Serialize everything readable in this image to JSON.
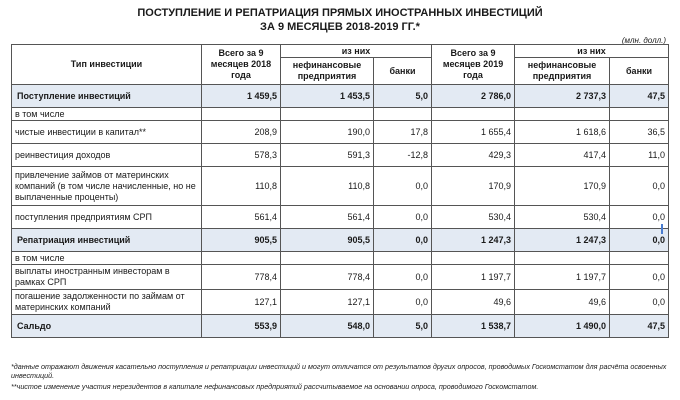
{
  "title": {
    "line1": "ПОСТУПЛЕНИЕ И РЕПАТРИАЦИЯ ПРЯМЫХ ИНОСТРАННЫХ ИНВЕСТИЦИЙ",
    "line2": "ЗА 9 МЕСЯЦЕВ 2018-2019 ГГ.*"
  },
  "unit": "(млн. долл.)",
  "header": {
    "type": "Тип инвестиции",
    "total2018": "Всего за 9 месяцев 2018 года",
    "of_which_2018": "из них",
    "nonfin_2018": "нефинансовые предприятия",
    "banks_2018": "банки",
    "total2019": "Всего за 9 месяцев 2019 года",
    "of_which_2019": "из них",
    "nonfin_2019": "нефинансовые предприятия",
    "banks_2019": "банки"
  },
  "rows": [
    {
      "label": "Поступление инвестиций",
      "t18": "1 459,5",
      "n18": "1 453,5",
      "b18": "5,0",
      "t19": "2 786,0",
      "n19": "2 737,3",
      "b19": "47,5"
    },
    {
      "label": "в том числе",
      "t18": "",
      "n18": "",
      "b18": "",
      "t19": "",
      "n19": "",
      "b19": ""
    },
    {
      "label": "чистые инвестиции в капитал**",
      "t18": "208,9",
      "n18": "190,0",
      "b18": "17,8",
      "t19": "1 655,4",
      "n19": "1 618,6",
      "b19": "36,5"
    },
    {
      "label": "реинвестиция доходов",
      "t18": "578,3",
      "n18": "591,3",
      "b18": "-12,8",
      "t19": "429,3",
      "n19": "417,4",
      "b19": "11,0"
    },
    {
      "label": "привлечение займов от материнских компаний (в том числе начисленные, но не выплаченные проценты)",
      "t18": "110,8",
      "n18": "110,8",
      "b18": "0,0",
      "t19": "170,9",
      "n19": "170,9",
      "b19": "0,0"
    },
    {
      "label": "поступления предприятиям СРП",
      "t18": "561,4",
      "n18": "561,4",
      "b18": "0,0",
      "t19": "530,4",
      "n19": "530,4",
      "b19": "0,0"
    },
    {
      "label": "Репатриация инвестиций",
      "t18": "905,5",
      "n18": "905,5",
      "b18": "0,0",
      "t19": "1 247,3",
      "n19": "1 247,3",
      "b19": "0,0"
    },
    {
      "label": "в том числе",
      "t18": "",
      "n18": "",
      "b18": "",
      "t19": "",
      "n19": "",
      "b19": ""
    },
    {
      "label": "выплаты иностранным инвесторам в рамках СРП",
      "t18": "778,4",
      "n18": "778,4",
      "b18": "0,0",
      "t19": "1 197,7",
      "n19": "1 197,7",
      "b19": "0,0"
    },
    {
      "label": "погашение задолженности по займам от материнских компаний",
      "t18": "127,1",
      "n18": "127,1",
      "b18": "0,0",
      "t19": "49,6",
      "n19": "49,6",
      "b19": "0,0"
    },
    {
      "label": "Сальдо",
      "t18": "553,9",
      "n18": "548,0",
      "b18": "5,0",
      "t19": "1 538,7",
      "n19": "1 490,0",
      "b19": "47,5"
    }
  ],
  "footnotes": {
    "f1": "*данные отражают движения касательно поступления и репатриации инвестиций и могут отличатся от результатов других опросов, проводимых Госкомстатом для расчёта освоенных инвестиций.",
    "f2": "**чистое изменение участия нерезидентов в капитале нефинансовых предприятий рассчитываемое на основании опроса, проводимого Госкомстатом."
  }
}
